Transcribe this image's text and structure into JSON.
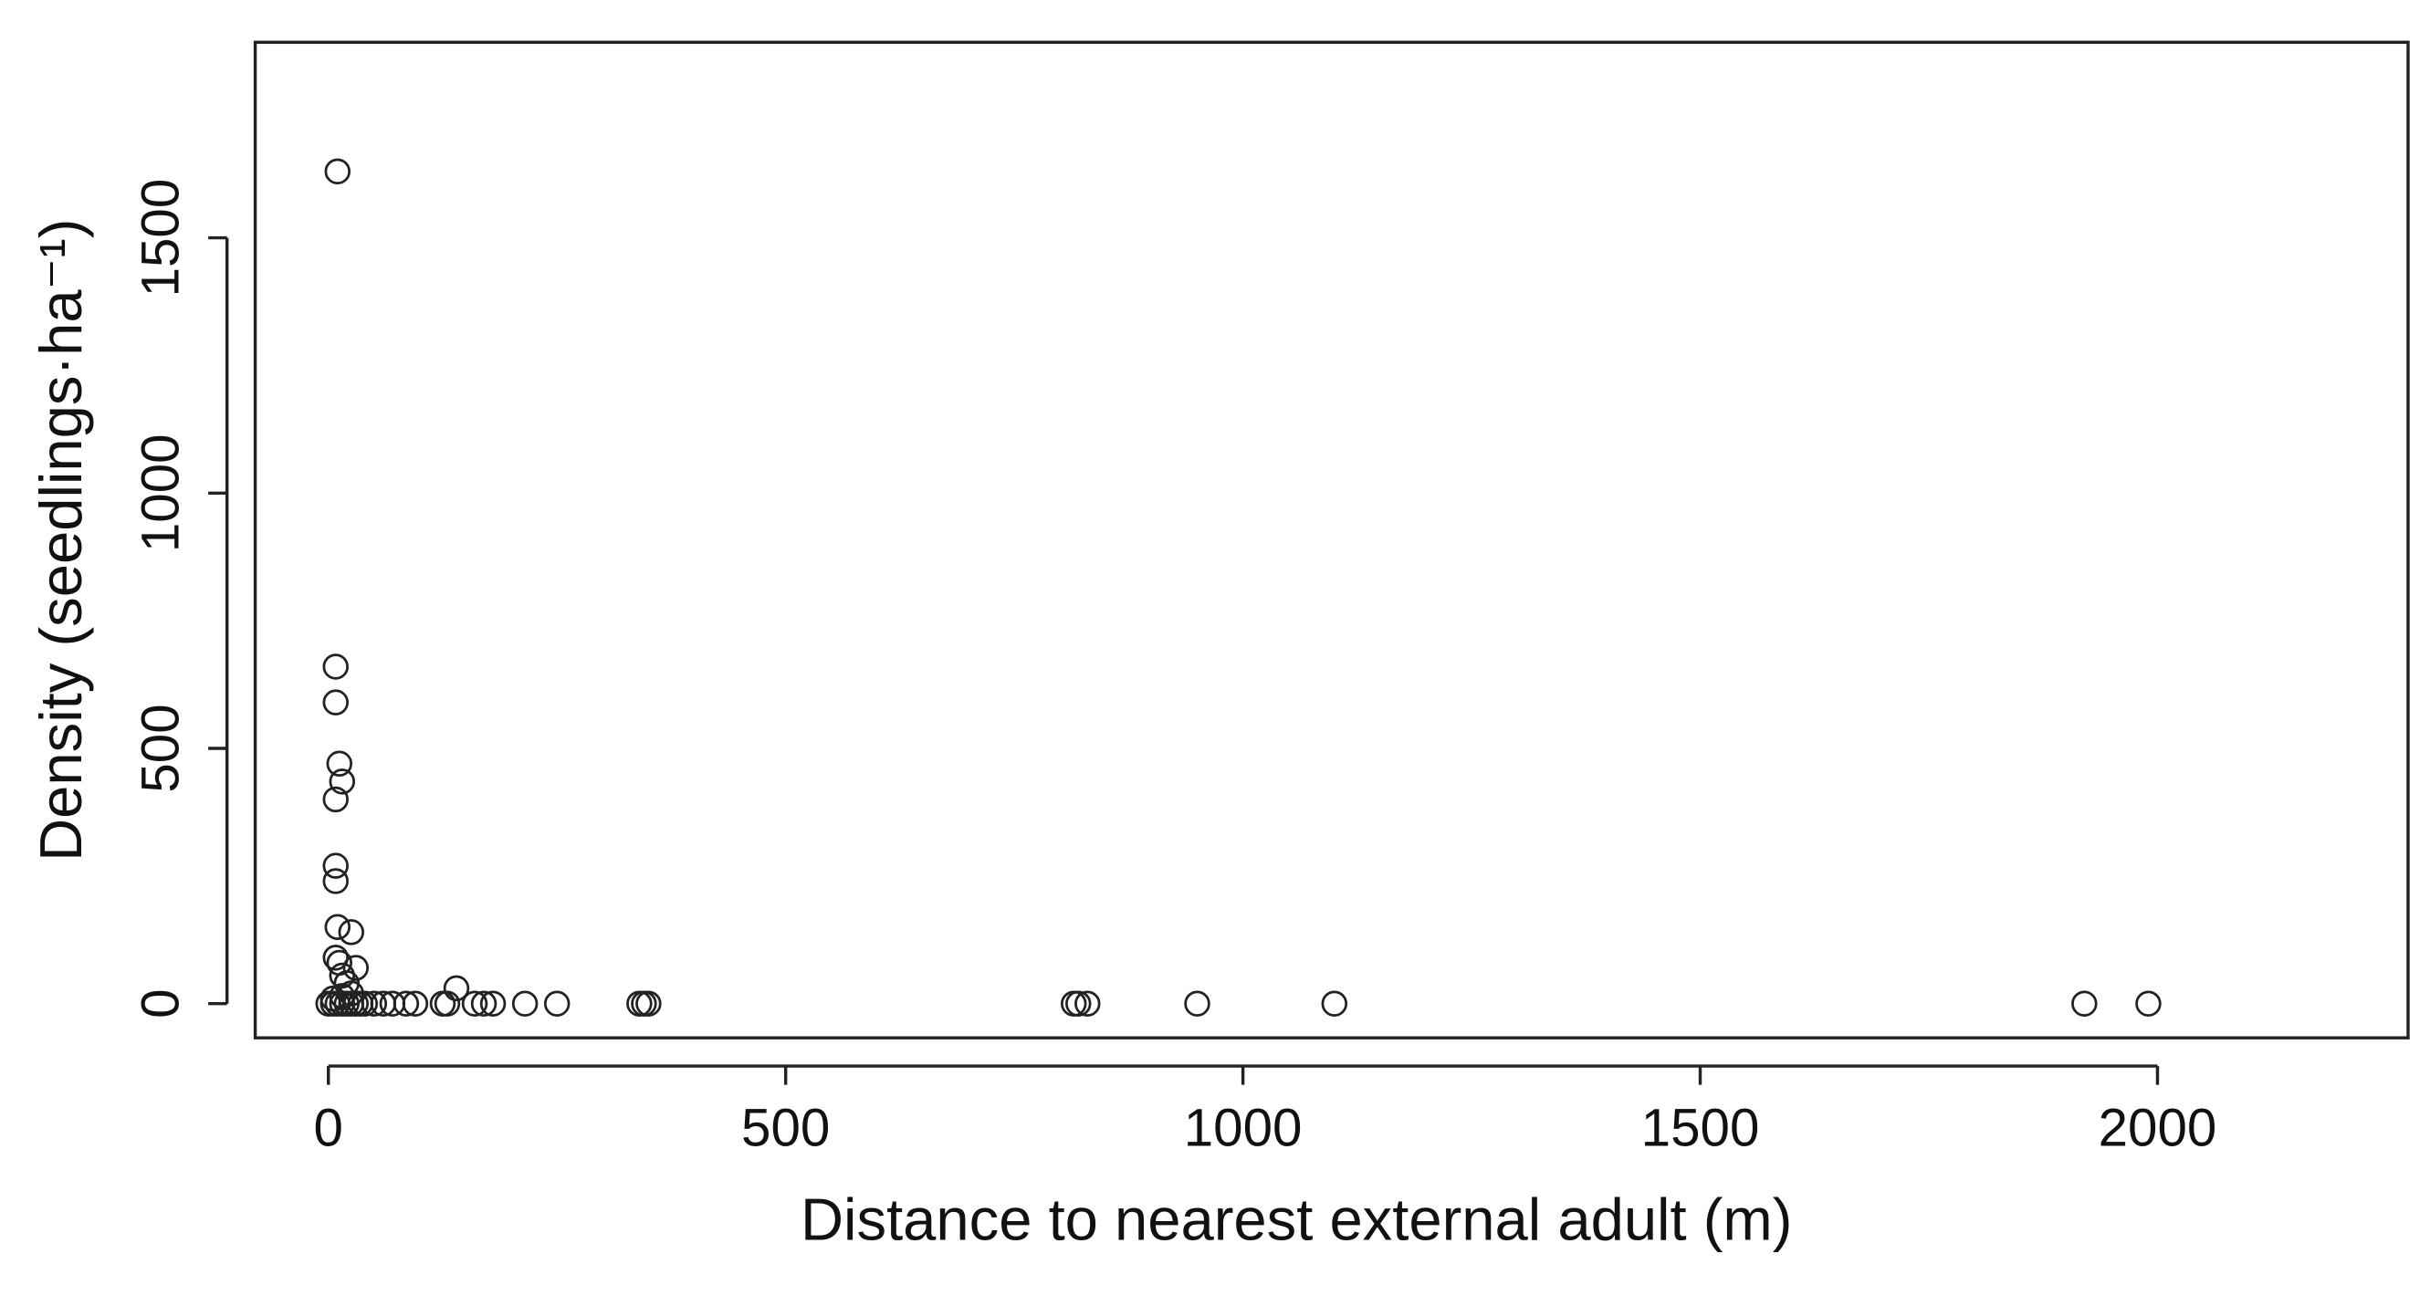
{
  "chart_data": {
    "type": "scatter",
    "xlabel": "Distance to nearest external adult (m)",
    "ylabel": "Density (seedlings·ha⁻¹)",
    "color": "#222222",
    "xlim": [
      -80,
      2274
    ],
    "ylim": [
      -67,
      1883
    ],
    "xticks": [
      0,
      500,
      1000,
      1500,
      2000
    ],
    "yticks": [
      0,
      500,
      1000,
      1500
    ],
    "grid": false,
    "x": [
      10,
      8,
      8,
      12,
      15,
      8,
      8,
      8,
      10,
      25,
      8,
      12,
      30,
      15,
      20,
      140,
      5,
      15,
      25,
      0,
      5,
      10,
      15,
      20,
      25,
      30,
      35,
      40,
      50,
      60,
      70,
      85,
      95,
      125,
      130,
      160,
      170,
      180,
      215,
      250,
      340,
      345,
      350,
      815,
      820,
      830,
      950,
      1100,
      1920,
      1990
    ],
    "y": [
      1630,
      660,
      590,
      470,
      435,
      400,
      270,
      240,
      150,
      140,
      90,
      80,
      70,
      55,
      40,
      30,
      10,
      15,
      20,
      0,
      0,
      0,
      0,
      0,
      0,
      0,
      0,
      0,
      0,
      0,
      0,
      0,
      0,
      0,
      0,
      0,
      0,
      0,
      0,
      0,
      0,
      0,
      0,
      0,
      0,
      0,
      0,
      0,
      0,
      0
    ]
  }
}
